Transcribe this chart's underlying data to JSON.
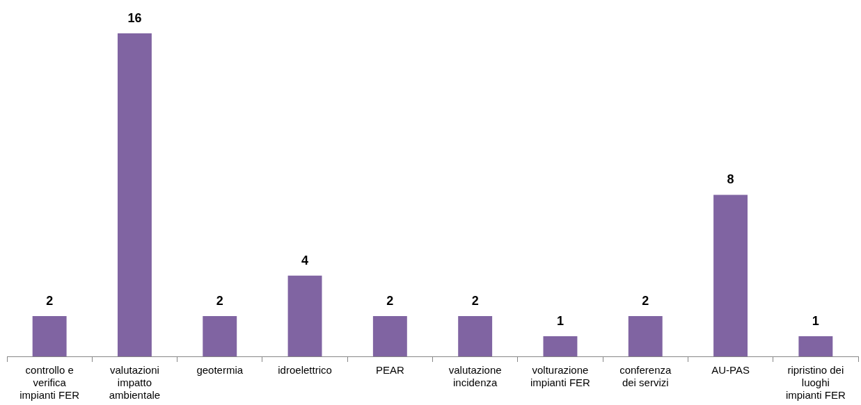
{
  "chart_data": {
    "type": "bar",
    "categories": [
      "controllo e verifica impianti FER",
      "valutazioni impatto ambientale",
      "geotermia",
      "idroelettrico",
      "PEAR",
      "valutazione incidenza",
      "volturazione impianti FER",
      "conferenza dei servizi",
      "AU-PAS",
      "ripristino dei luoghi impianti FER"
    ],
    "values": [
      2,
      16,
      2,
      4,
      2,
      2,
      1,
      2,
      8,
      1
    ],
    "color": "#8064a2",
    "data_labels": true,
    "grid": false,
    "legend": false
  }
}
